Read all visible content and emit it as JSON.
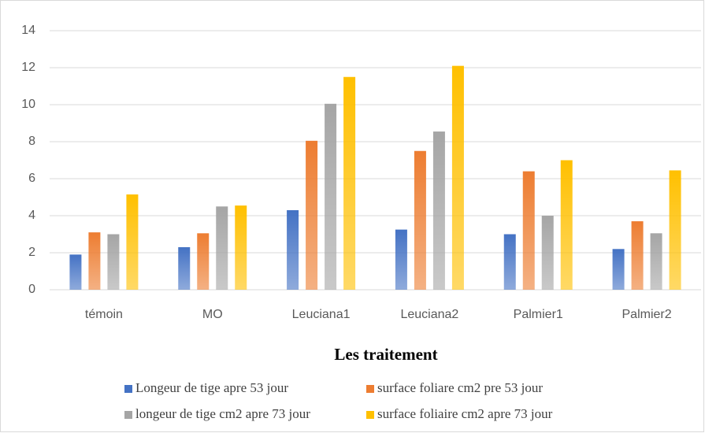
{
  "chart_data": {
    "type": "bar",
    "x_label": "Les traitement",
    "categories": [
      "témoin",
      "MO",
      "Leuciana1",
      "Leuciana2",
      "Palmier1",
      "Palmier2"
    ],
    "series": [
      {
        "name": "Longeur de tige apre 53 jour",
        "color": "#4472c4",
        "values": [
          1.9,
          2.3,
          4.3,
          3.25,
          3.0,
          2.2
        ]
      },
      {
        "name": "surface  foliare cm2 pre 53 jour",
        "color": "#ed7d31",
        "values": [
          3.1,
          3.05,
          8.05,
          7.5,
          6.4,
          3.7
        ]
      },
      {
        "name": "longeur de tige cm2 apre 73 jour",
        "color": "#a5a5a5",
        "values": [
          3.0,
          4.5,
          10.05,
          8.55,
          4.0,
          3.05
        ]
      },
      {
        "name": "surface foliaire cm2 apre 73 jour",
        "color": "#ffc000",
        "values": [
          5.15,
          4.55,
          11.5,
          12.1,
          7.0,
          6.45
        ]
      }
    ],
    "ylim": [
      0,
      14
    ],
    "yticks": [
      0,
      2,
      4,
      6,
      8,
      10,
      12,
      14
    ],
    "grid": true
  }
}
